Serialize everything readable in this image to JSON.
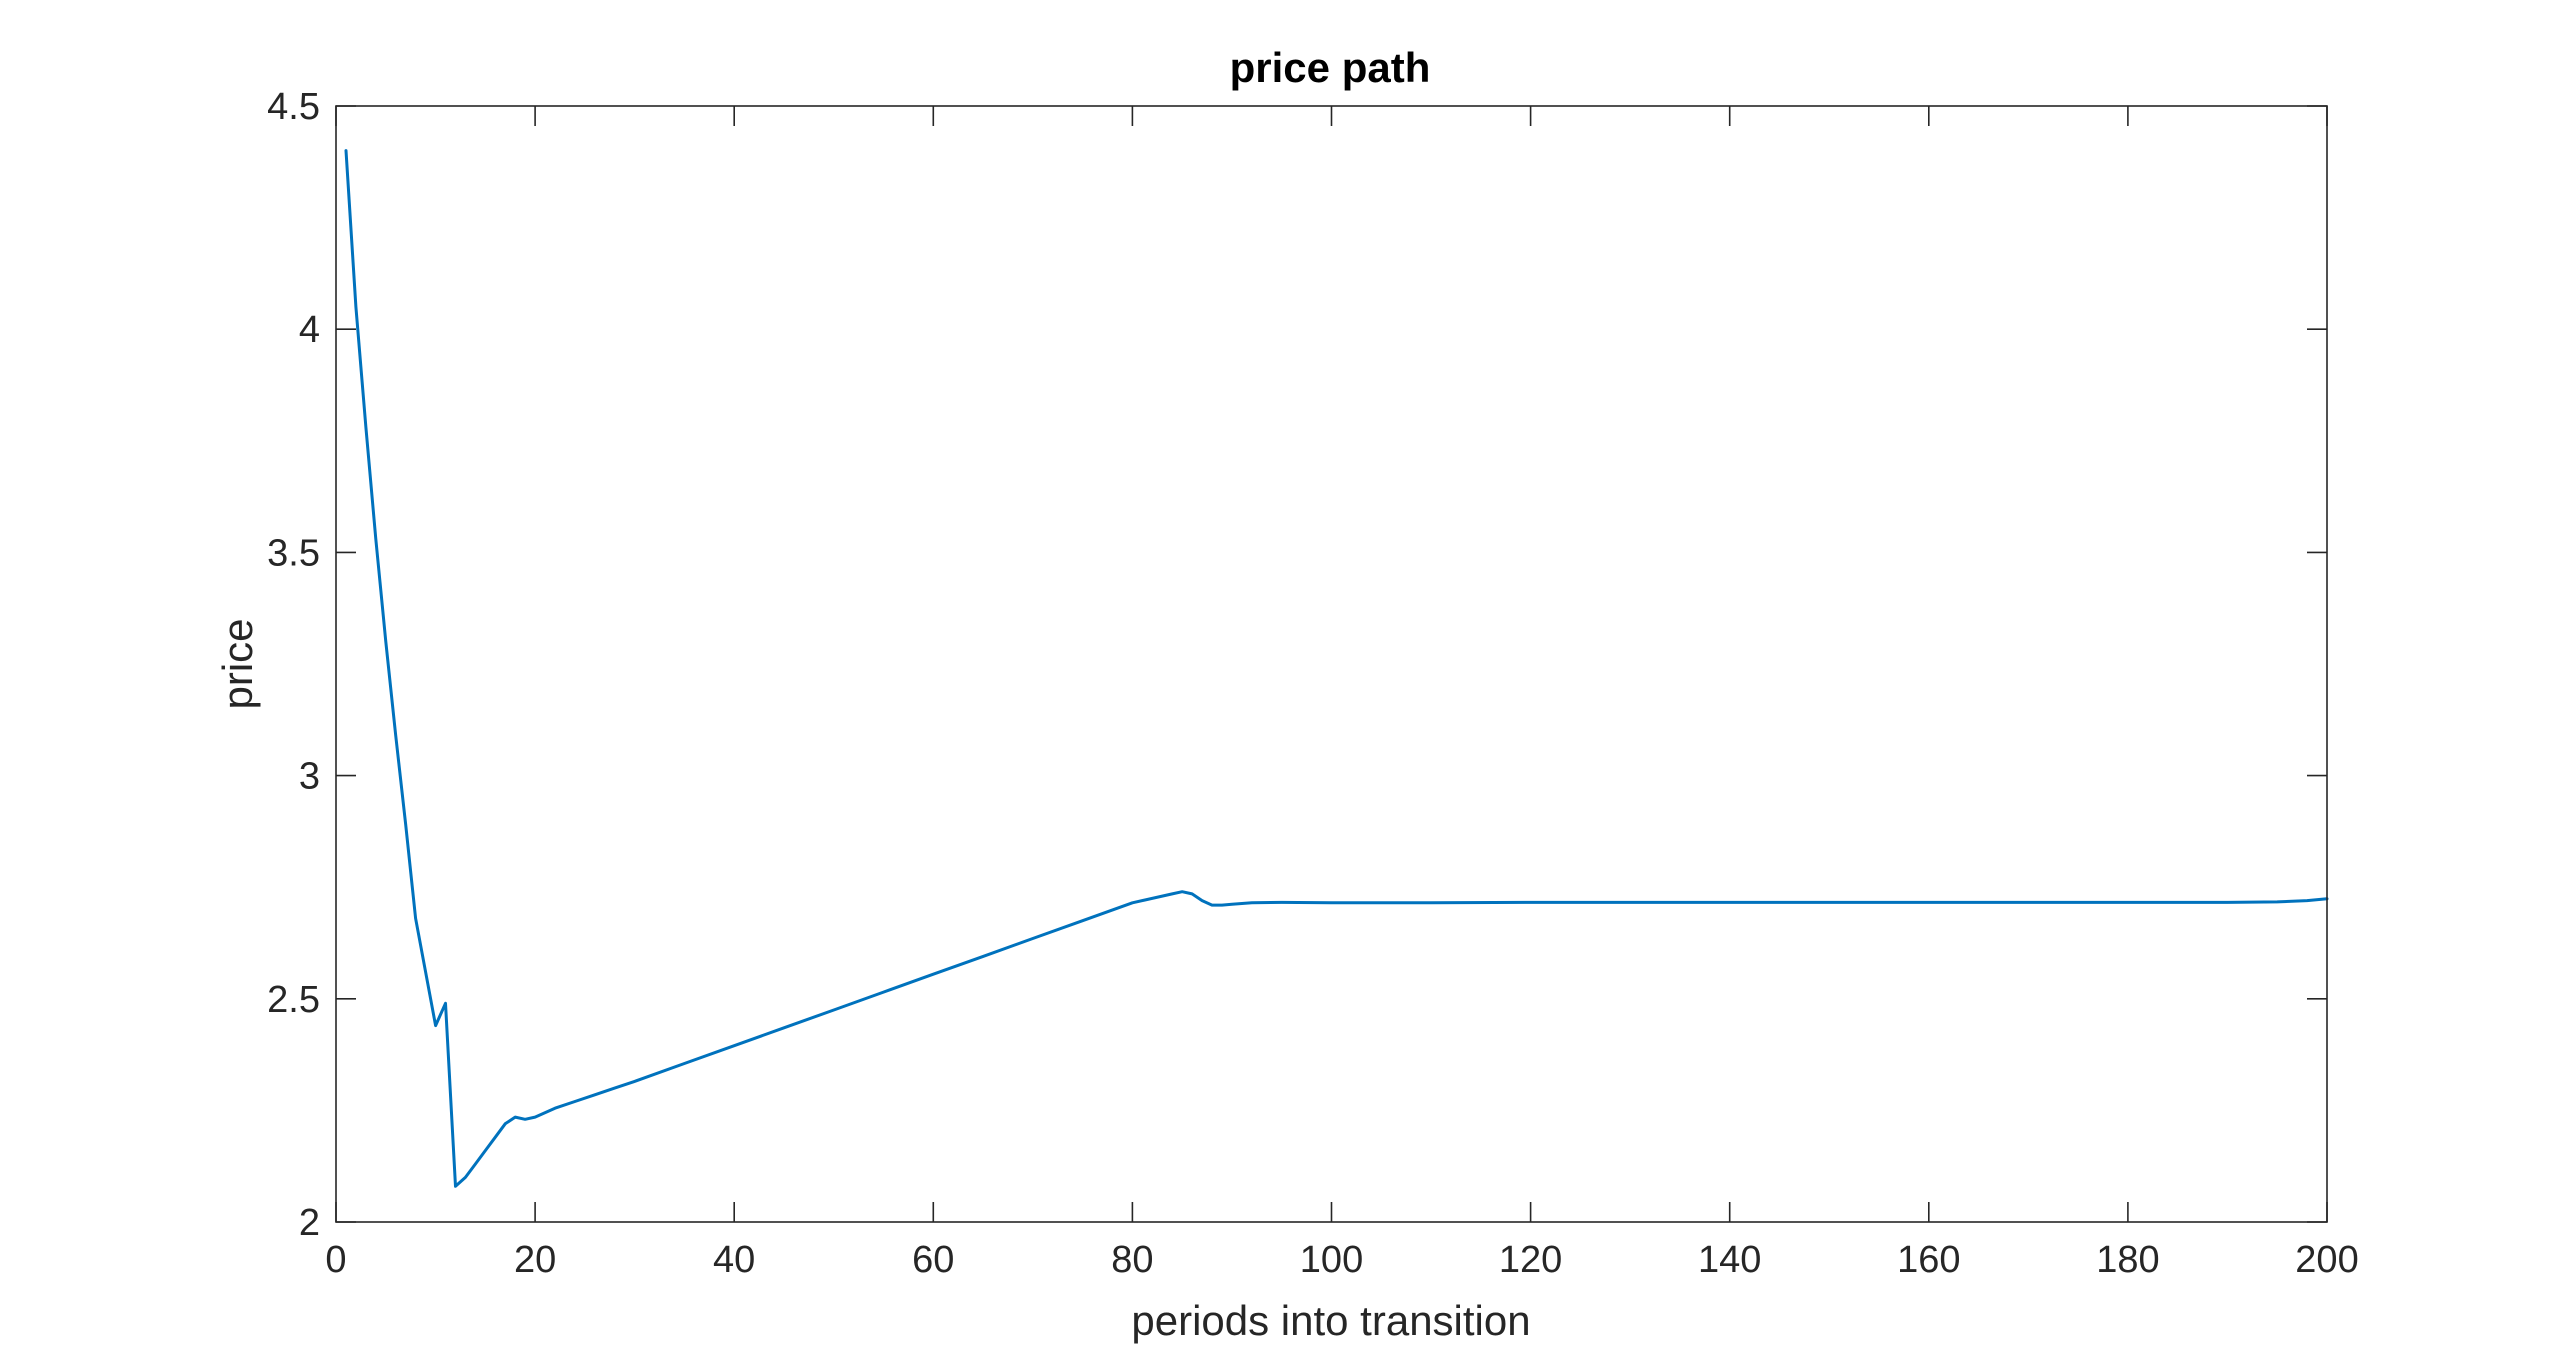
{
  "chart_data": {
    "type": "line",
    "title": "price path",
    "xlabel": "periods into transition",
    "ylabel": "price",
    "xlim": [
      0,
      200
    ],
    "ylim": [
      2,
      4.5
    ],
    "xticks": [
      0,
      20,
      40,
      60,
      80,
      100,
      120,
      140,
      160,
      180,
      200
    ],
    "yticks": [
      2,
      2.5,
      3,
      3.5,
      4,
      4.5
    ],
    "xtick_labels": [
      "0",
      "20",
      "40",
      "60",
      "80",
      "100",
      "120",
      "140",
      "160",
      "180",
      "200"
    ],
    "ytick_labels": [
      "2",
      "2.5",
      "3",
      "3.5",
      "4",
      "4.5"
    ],
    "grid": false,
    "line_color": "#0072BD",
    "series": [
      {
        "x": [
          1,
          2,
          3,
          4,
          5,
          6,
          7,
          8,
          9,
          10,
          11,
          12,
          13,
          14,
          15,
          16,
          17,
          18,
          19,
          20,
          22,
          24,
          26,
          28,
          30,
          35,
          40,
          45,
          50,
          55,
          60,
          65,
          70,
          75,
          80,
          84,
          85,
          86,
          87,
          88,
          89,
          90,
          92,
          95,
          100,
          110,
          120,
          130,
          140,
          150,
          160,
          170,
          180,
          190,
          195,
          198,
          200
        ],
        "y": [
          4.4,
          4.05,
          3.78,
          3.53,
          3.3,
          3.09,
          2.89,
          2.68,
          2.56,
          2.44,
          2.49,
          2.08,
          2.1,
          2.13,
          2.16,
          2.19,
          2.22,
          2.235,
          2.23,
          2.235,
          2.255,
          2.27,
          2.285,
          2.3,
          2.315,
          2.355,
          2.395,
          2.435,
          2.475,
          2.515,
          2.555,
          2.595,
          2.635,
          2.675,
          2.715,
          2.735,
          2.74,
          2.735,
          2.72,
          2.71,
          2.71,
          2.712,
          2.715,
          2.716,
          2.715,
          2.715,
          2.716,
          2.716,
          2.716,
          2.716,
          2.716,
          2.716,
          2.716,
          2.716,
          2.717,
          2.72,
          2.724
        ]
      }
    ]
  }
}
